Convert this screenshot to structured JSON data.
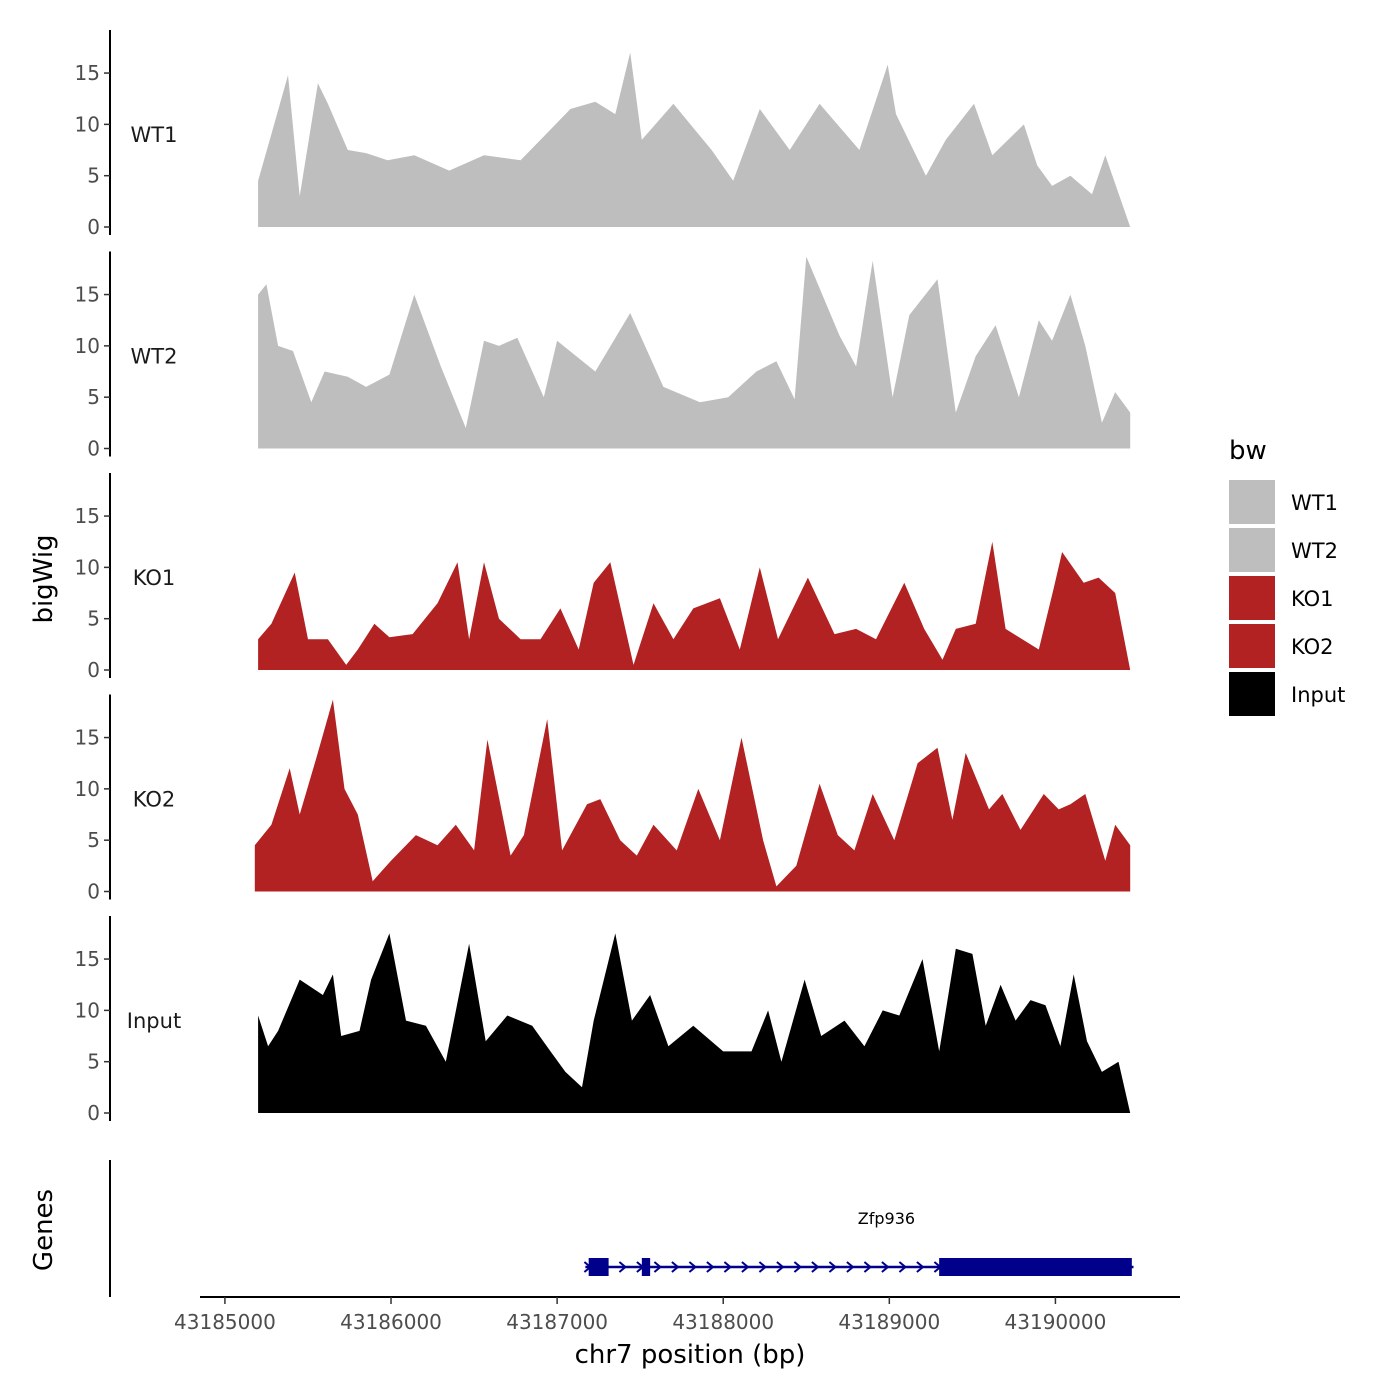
{
  "chart_data": {
    "type": "area",
    "ylabel": "bigWig",
    "xlabel": "chr7 position (bp)",
    "ylim": [
      0,
      19
    ],
    "y_ticks": [
      0,
      5,
      10,
      15
    ],
    "x_range": [
      43184850,
      43190750
    ],
    "x_ticks": [
      43185000,
      43186000,
      43187000,
      43188000,
      43189000,
      43190000
    ],
    "x_tick_labels": [
      "43185000",
      "43186000",
      "43187000",
      "43188000",
      "43189000",
      "43190000"
    ],
    "legend": {
      "title": "bw",
      "placement": "right",
      "entries": [
        {
          "name": "WT1",
          "color": "#bebebe"
        },
        {
          "name": "WT2",
          "color": "#bebebe"
        },
        {
          "name": "KO1",
          "color": "#b22222"
        },
        {
          "name": "KO2",
          "color": "#b22222"
        },
        {
          "name": "Input",
          "color": "#000000"
        }
      ]
    },
    "series": [
      {
        "name": "WT1",
        "color": "#bebebe",
        "x": [
          43185200,
          43185270,
          43185380,
          43185450,
          43185560,
          43185620,
          43185740,
          43185850,
          43185980,
          43186140,
          43186350,
          43186560,
          43186780,
          43186990,
          43187080,
          43187230,
          43187350,
          43187440,
          43187510,
          43187700,
          43187930,
          43188060,
          43188220,
          43188400,
          43188580,
          43188820,
          43188990,
          43189040,
          43189220,
          43189340,
          43189510,
          43189620,
          43189810,
          43189890,
          43189980,
          43190090,
          43190220,
          43190300,
          43190450
        ],
        "y": [
          4.5,
          8.5,
          14.8,
          3.0,
          14.0,
          12.0,
          7.5,
          7.2,
          6.5,
          7.0,
          5.5,
          7.0,
          6.5,
          10.0,
          11.5,
          12.2,
          11.0,
          17.0,
          8.5,
          12.0,
          7.5,
          4.5,
          11.5,
          7.5,
          12.0,
          7.5,
          15.8,
          11.0,
          5.0,
          8.5,
          12.0,
          7.0,
          10.0,
          6.0,
          4.0,
          5.0,
          3.2,
          7.0,
          0
        ]
      },
      {
        "name": "WT2",
        "color": "#bebebe",
        "x": [
          43185200,
          43185250,
          43185320,
          43185410,
          43185520,
          43185600,
          43185740,
          43185850,
          43185990,
          43186140,
          43186300,
          43186450,
          43186560,
          43186650,
          43186760,
          43186920,
          43187000,
          43187230,
          43187440,
          43187640,
          43187860,
          43188030,
          43188200,
          43188320,
          43188430,
          43188500,
          43188700,
          43188800,
          43188900,
          43189020,
          43189120,
          43189290,
          43189400,
          43189520,
          43189640,
          43189780,
          43189900,
          43189980,
          43190090,
          43190180,
          43190280,
          43190360,
          43190450
        ],
        "y": [
          15.0,
          16.0,
          10.0,
          9.5,
          4.5,
          7.5,
          7.0,
          6.0,
          7.2,
          15.0,
          8.0,
          2.0,
          10.5,
          10.0,
          10.8,
          5.0,
          10.5,
          7.5,
          13.2,
          6.0,
          4.5,
          5.0,
          7.5,
          8.5,
          4.8,
          18.7,
          11.0,
          8.0,
          18.3,
          5.0,
          13.0,
          16.5,
          3.5,
          9.0,
          12.0,
          5.0,
          12.5,
          10.5,
          15.0,
          10.0,
          2.5,
          5.5,
          3.5
        ]
      },
      {
        "name": "KO1",
        "color": "#b22222",
        "x": [
          43185200,
          43185280,
          43185420,
          43185500,
          43185620,
          43185730,
          43185800,
          43185900,
          43185990,
          43186130,
          43186280,
          43186400,
          43186470,
          43186560,
          43186650,
          43186780,
          43186900,
          43187020,
          43187130,
          43187220,
          43187320,
          43187460,
          43187580,
          43187700,
          43187820,
          43187980,
          43188100,
          43188220,
          43188330,
          43188510,
          43188670,
          43188800,
          43188920,
          43189090,
          43189210,
          43189320,
          43189400,
          43189520,
          43189620,
          43189700,
          43189900,
          43189990,
          43190040,
          43190170,
          43190260,
          43190360,
          43190450
        ],
        "y": [
          3.0,
          4.5,
          9.5,
          3.0,
          3.0,
          0.5,
          2.0,
          4.5,
          3.2,
          3.5,
          6.5,
          10.5,
          3.0,
          10.5,
          5.0,
          3.0,
          3.0,
          6.0,
          2.0,
          8.5,
          10.5,
          0.5,
          6.5,
          3.0,
          6.0,
          7.0,
          2.0,
          10.0,
          3.0,
          9.0,
          3.5,
          4.0,
          3.0,
          8.5,
          4.0,
          1.0,
          4.0,
          4.5,
          12.5,
          4.0,
          2.0,
          8.0,
          11.5,
          8.5,
          9.0,
          7.5,
          0
        ]
      },
      {
        "name": "KO2",
        "color": "#b22222",
        "x": [
          43185180,
          43185280,
          43185390,
          43185450,
          43185550,
          43185650,
          43185720,
          43185800,
          43185890,
          43186000,
          43186150,
          43186280,
          43186390,
          43186500,
          43186580,
          43186720,
          43186800,
          43186940,
          43187030,
          43187180,
          43187260,
          43187380,
          43187480,
          43187580,
          43187720,
          43187850,
          43187980,
          43188110,
          43188240,
          43188320,
          43188440,
          43188580,
          43188690,
          43188790,
          43188900,
          43189030,
          43189170,
          43189290,
          43189380,
          43189460,
          43189600,
          43189680,
          43189790,
          43189930,
          43190020,
          43190090,
          43190180,
          43190300,
          43190360,
          43190450
        ],
        "y": [
          4.5,
          6.5,
          12.0,
          7.5,
          13.0,
          18.7,
          10.0,
          7.5,
          1.0,
          3.0,
          5.5,
          4.5,
          6.5,
          4.0,
          14.8,
          3.5,
          5.5,
          16.8,
          4.0,
          8.5,
          9.0,
          5.0,
          3.5,
          6.5,
          4.0,
          10.0,
          5.0,
          15.0,
          5.0,
          0.5,
          2.5,
          10.5,
          5.5,
          4.0,
          9.5,
          5.0,
          12.5,
          14.0,
          7.0,
          13.5,
          8.0,
          9.5,
          6.0,
          9.5,
          8.0,
          8.5,
          9.5,
          3.0,
          6.5,
          4.5
        ]
      },
      {
        "name": "Input",
        "color": "#000000",
        "x": [
          43185200,
          43185260,
          43185320,
          43185450,
          43185590,
          43185650,
          43185700,
          43185810,
          43185880,
          43185990,
          43186090,
          43186210,
          43186330,
          43186470,
          43186570,
          43186700,
          43186850,
          43186960,
          43187050,
          43187150,
          43187220,
          43187350,
          43187450,
          43187560,
          43187670,
          43187820,
          43188000,
          43188170,
          43188270,
          43188350,
          43188490,
          43188590,
          43188730,
          43188850,
          43188960,
          43189060,
          43189200,
          43189300,
          43189400,
          43189500,
          43189580,
          43189670,
          43189760,
          43189850,
          43189940,
          43190030,
          43190110,
          43190190,
          43190280,
          43190380,
          43190450
        ],
        "y": [
          9.5,
          6.5,
          8.0,
          13.0,
          11.5,
          13.5,
          7.5,
          8.0,
          13.0,
          17.5,
          9.0,
          8.5,
          5.0,
          16.5,
          7.0,
          9.5,
          8.5,
          6.0,
          4.0,
          2.5,
          9.0,
          17.5,
          9.0,
          11.5,
          6.5,
          8.5,
          6.0,
          6.0,
          10.0,
          5.0,
          13.0,
          7.5,
          9.0,
          6.5,
          10.0,
          9.5,
          15.0,
          6.0,
          16.0,
          15.5,
          8.5,
          12.5,
          9.0,
          11.0,
          10.5,
          6.5,
          13.5,
          7.0,
          4.0,
          5.0,
          0
        ]
      }
    ],
    "genes": {
      "track_label": "Genes",
      "name": "Zfp936",
      "color": "#00008b",
      "start": 43187170,
      "end": 43190470,
      "strand": "+",
      "exons": [
        [
          43187190,
          43187310
        ],
        [
          43187510,
          43187560
        ],
        [
          43189300,
          43190460
        ]
      ]
    }
  }
}
